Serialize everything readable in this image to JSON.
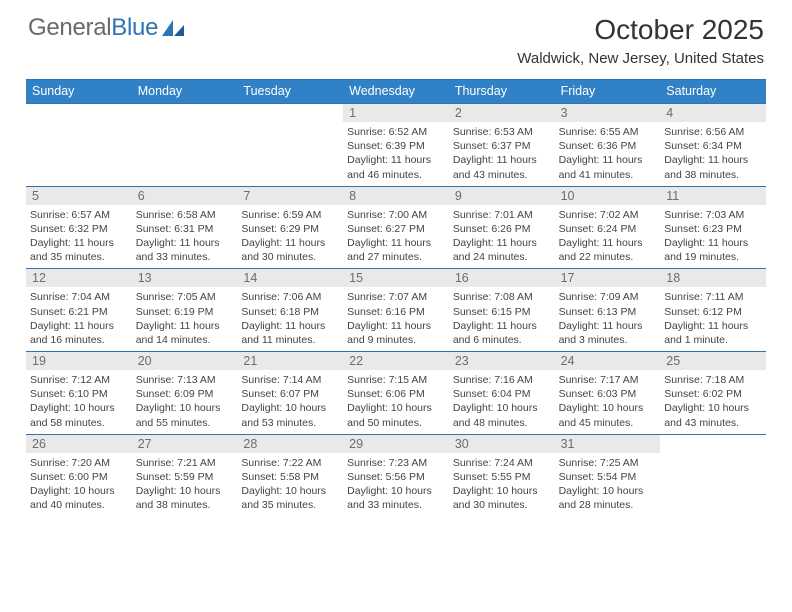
{
  "logo": {
    "text1": "General",
    "text2": "Blue"
  },
  "title": "October 2025",
  "location": "Waldwick, New Jersey, United States",
  "colors": {
    "header_bg": "#3081c6",
    "border": "#2d74b5",
    "daynum_bg": "#e9e9e9",
    "logo_gray": "#6a6a6a",
    "logo_blue": "#2d74b5"
  },
  "day_labels": [
    "Sunday",
    "Monday",
    "Tuesday",
    "Wednesday",
    "Thursday",
    "Friday",
    "Saturday"
  ],
  "weeks": [
    [
      null,
      null,
      null,
      {
        "n": "1",
        "sr": "6:52 AM",
        "ss": "6:39 PM",
        "d1": "Daylight: 11 hours",
        "d2": "and 46 minutes."
      },
      {
        "n": "2",
        "sr": "6:53 AM",
        "ss": "6:37 PM",
        "d1": "Daylight: 11 hours",
        "d2": "and 43 minutes."
      },
      {
        "n": "3",
        "sr": "6:55 AM",
        "ss": "6:36 PM",
        "d1": "Daylight: 11 hours",
        "d2": "and 41 minutes."
      },
      {
        "n": "4",
        "sr": "6:56 AM",
        "ss": "6:34 PM",
        "d1": "Daylight: 11 hours",
        "d2": "and 38 minutes."
      }
    ],
    [
      {
        "n": "5",
        "sr": "6:57 AM",
        "ss": "6:32 PM",
        "d1": "Daylight: 11 hours",
        "d2": "and 35 minutes."
      },
      {
        "n": "6",
        "sr": "6:58 AM",
        "ss": "6:31 PM",
        "d1": "Daylight: 11 hours",
        "d2": "and 33 minutes."
      },
      {
        "n": "7",
        "sr": "6:59 AM",
        "ss": "6:29 PM",
        "d1": "Daylight: 11 hours",
        "d2": "and 30 minutes."
      },
      {
        "n": "8",
        "sr": "7:00 AM",
        "ss": "6:27 PM",
        "d1": "Daylight: 11 hours",
        "d2": "and 27 minutes."
      },
      {
        "n": "9",
        "sr": "7:01 AM",
        "ss": "6:26 PM",
        "d1": "Daylight: 11 hours",
        "d2": "and 24 minutes."
      },
      {
        "n": "10",
        "sr": "7:02 AM",
        "ss": "6:24 PM",
        "d1": "Daylight: 11 hours",
        "d2": "and 22 minutes."
      },
      {
        "n": "11",
        "sr": "7:03 AM",
        "ss": "6:23 PM",
        "d1": "Daylight: 11 hours",
        "d2": "and 19 minutes."
      }
    ],
    [
      {
        "n": "12",
        "sr": "7:04 AM",
        "ss": "6:21 PM",
        "d1": "Daylight: 11 hours",
        "d2": "and 16 minutes."
      },
      {
        "n": "13",
        "sr": "7:05 AM",
        "ss": "6:19 PM",
        "d1": "Daylight: 11 hours",
        "d2": "and 14 minutes."
      },
      {
        "n": "14",
        "sr": "7:06 AM",
        "ss": "6:18 PM",
        "d1": "Daylight: 11 hours",
        "d2": "and 11 minutes."
      },
      {
        "n": "15",
        "sr": "7:07 AM",
        "ss": "6:16 PM",
        "d1": "Daylight: 11 hours",
        "d2": "and 9 minutes."
      },
      {
        "n": "16",
        "sr": "7:08 AM",
        "ss": "6:15 PM",
        "d1": "Daylight: 11 hours",
        "d2": "and 6 minutes."
      },
      {
        "n": "17",
        "sr": "7:09 AM",
        "ss": "6:13 PM",
        "d1": "Daylight: 11 hours",
        "d2": "and 3 minutes."
      },
      {
        "n": "18",
        "sr": "7:11 AM",
        "ss": "6:12 PM",
        "d1": "Daylight: 11 hours",
        "d2": "and 1 minute."
      }
    ],
    [
      {
        "n": "19",
        "sr": "7:12 AM",
        "ss": "6:10 PM",
        "d1": "Daylight: 10 hours",
        "d2": "and 58 minutes."
      },
      {
        "n": "20",
        "sr": "7:13 AM",
        "ss": "6:09 PM",
        "d1": "Daylight: 10 hours",
        "d2": "and 55 minutes."
      },
      {
        "n": "21",
        "sr": "7:14 AM",
        "ss": "6:07 PM",
        "d1": "Daylight: 10 hours",
        "d2": "and 53 minutes."
      },
      {
        "n": "22",
        "sr": "7:15 AM",
        "ss": "6:06 PM",
        "d1": "Daylight: 10 hours",
        "d2": "and 50 minutes."
      },
      {
        "n": "23",
        "sr": "7:16 AM",
        "ss": "6:04 PM",
        "d1": "Daylight: 10 hours",
        "d2": "and 48 minutes."
      },
      {
        "n": "24",
        "sr": "7:17 AM",
        "ss": "6:03 PM",
        "d1": "Daylight: 10 hours",
        "d2": "and 45 minutes."
      },
      {
        "n": "25",
        "sr": "7:18 AM",
        "ss": "6:02 PM",
        "d1": "Daylight: 10 hours",
        "d2": "and 43 minutes."
      }
    ],
    [
      {
        "n": "26",
        "sr": "7:20 AM",
        "ss": "6:00 PM",
        "d1": "Daylight: 10 hours",
        "d2": "and 40 minutes."
      },
      {
        "n": "27",
        "sr": "7:21 AM",
        "ss": "5:59 PM",
        "d1": "Daylight: 10 hours",
        "d2": "and 38 minutes."
      },
      {
        "n": "28",
        "sr": "7:22 AM",
        "ss": "5:58 PM",
        "d1": "Daylight: 10 hours",
        "d2": "and 35 minutes."
      },
      {
        "n": "29",
        "sr": "7:23 AM",
        "ss": "5:56 PM",
        "d1": "Daylight: 10 hours",
        "d2": "and 33 minutes."
      },
      {
        "n": "30",
        "sr": "7:24 AM",
        "ss": "5:55 PM",
        "d1": "Daylight: 10 hours",
        "d2": "and 30 minutes."
      },
      {
        "n": "31",
        "sr": "7:25 AM",
        "ss": "5:54 PM",
        "d1": "Daylight: 10 hours",
        "d2": "and 28 minutes."
      },
      null
    ]
  ]
}
